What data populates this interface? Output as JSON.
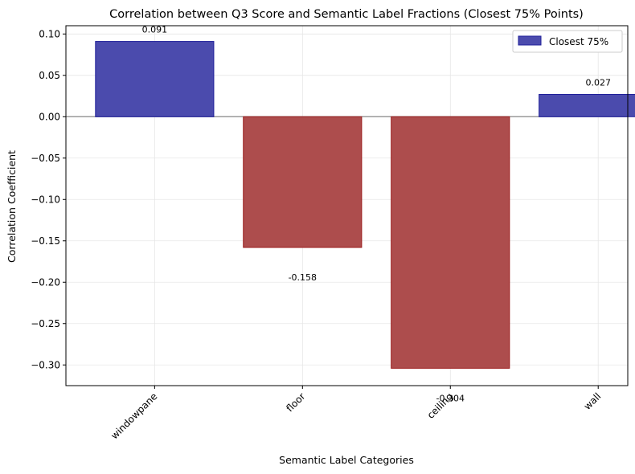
{
  "chart_data": {
    "type": "bar",
    "title": "Correlation between Q3 Score and Semantic Label Fractions (Closest 75% Points)",
    "xlabel": "Semantic Label Categories",
    "ylabel": "Correlation Coefficient",
    "categories": [
      "windowpane",
      "floor",
      "ceiling",
      "wall"
    ],
    "series": [
      {
        "name": "Closest 75%",
        "values": [
          0.091,
          -0.158,
          -0.304,
          0.027
        ]
      }
    ],
    "data_labels": [
      "0.091",
      "-0.158",
      "-0.304",
      "0.027"
    ],
    "ylim": [
      -0.325,
      0.11
    ],
    "yticks": [
      0.1,
      0.05,
      0.0,
      -0.05,
      -0.1,
      -0.15,
      -0.2,
      -0.25,
      -0.3
    ],
    "ytick_labels": [
      "0.10",
      "0.05",
      "0.00",
      "−0.05",
      "−0.10",
      "−0.15",
      "−0.20",
      "−0.25",
      "−0.30"
    ],
    "grid": true,
    "legend_position": "top-right",
    "colors": {
      "positive": "#1f1f9a",
      "negative": "#9b1c1c",
      "positive_fill": "#4b4bad",
      "negative_fill": "#ad4d4d",
      "grid": "#e6e6e6",
      "zero_line": "#9a9a9a"
    }
  }
}
